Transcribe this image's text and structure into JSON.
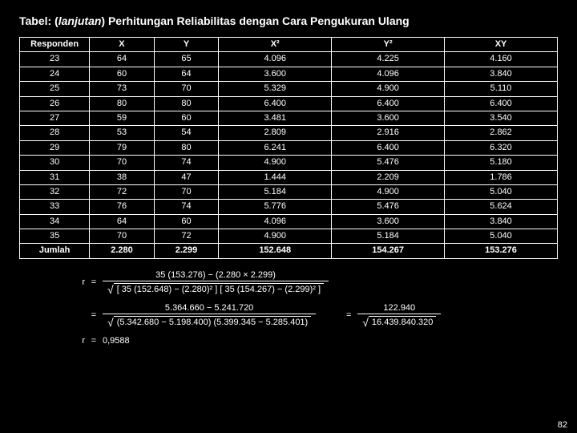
{
  "title_prefix": "Tabel: (",
  "title_italic": "lanjutan",
  "title_suffix": ")  Perhitungan Reliabilitas dengan Cara Pengukuran Ulang",
  "table": {
    "columns": [
      "Responden",
      "X",
      "Y",
      "X²",
      "Y²",
      "XY"
    ],
    "rows": [
      [
        "23",
        "64",
        "65",
        "4.096",
        "4.225",
        "4.160"
      ],
      [
        "24",
        "60",
        "64",
        "3.600",
        "4.096",
        "3.840"
      ],
      [
        "25",
        "73",
        "70",
        "5.329",
        "4.900",
        "5.110"
      ],
      [
        "26",
        "80",
        "80",
        "6.400",
        "6.400",
        "6.400"
      ],
      [
        "27",
        "59",
        "60",
        "3.481",
        "3.600",
        "3.540"
      ],
      [
        "28",
        "53",
        "54",
        "2.809",
        "2.916",
        "2.862"
      ],
      [
        "29",
        "79",
        "80",
        "6.241",
        "6.400",
        "6.320"
      ],
      [
        "30",
        "70",
        "74",
        "4.900",
        "5.476",
        "5.180"
      ],
      [
        "31",
        "38",
        "47",
        "1.444",
        "2.209",
        "1.786"
      ],
      [
        "32",
        "72",
        "70",
        "5.184",
        "4.900",
        "5.040"
      ],
      [
        "33",
        "76",
        "74",
        "5.776",
        "5.476",
        "5.624"
      ],
      [
        "34",
        "64",
        "60",
        "4.096",
        "3.600",
        "3.840"
      ],
      [
        "35",
        "70",
        "72",
        "4.900",
        "5.184",
        "5.040"
      ]
    ],
    "total_row": [
      "Jumlah",
      "2.280",
      "2.299",
      "152.648",
      "154.267",
      "153.276"
    ]
  },
  "formula": {
    "row1": {
      "label": "r",
      "eq": "=",
      "num": "35 (153.276) − (2.280 × 2.299)",
      "den": "[ 35 (152.648) − (2.280)² ] [ 35 (154.267) − (2.299)² ]"
    },
    "row2": {
      "label": "",
      "eq": "=",
      "left_num": "5.364.660 − 5.241.720",
      "left_den": "(5.342.680 − 5.198.400) (5.399.345 − 5.285.401)",
      "mid_eq": "=",
      "right_num": "122.940",
      "right_den": "16.439.840.320"
    },
    "row3": {
      "label": "r",
      "eq": "=",
      "value": "0,9588"
    }
  },
  "pagenum": "82"
}
